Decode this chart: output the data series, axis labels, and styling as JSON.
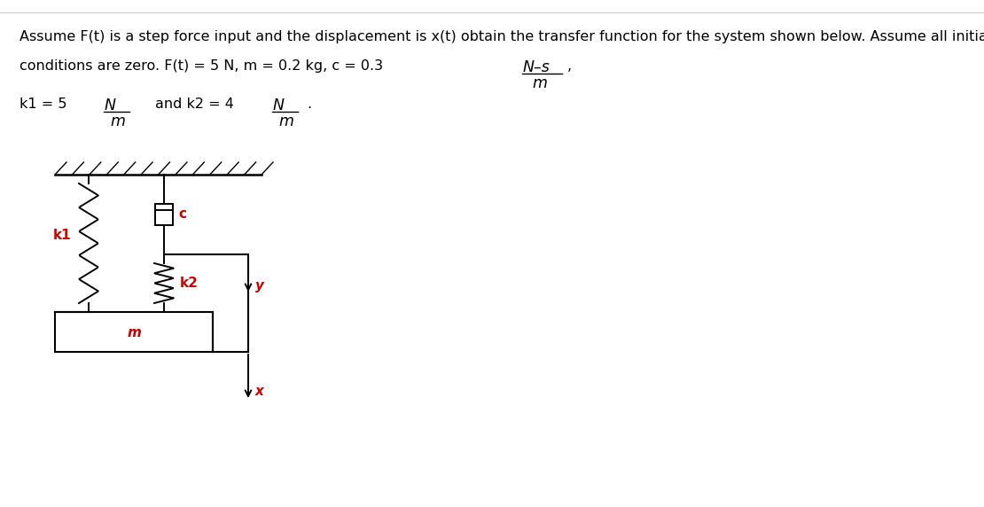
{
  "bg_color": "#ffffff",
  "text_color": "#000000",
  "red_color": "#cc0000",
  "line1": "Assume F(t) is a step force input and the displacement is x(t) obtain the transfer function for the system shown below. Assume all initial",
  "line2_left": "conditions are zero. F(t) = 5 N, m = 0.2 kg, c = 0.3",
  "line2_frac_num": "N–s",
  "line2_frac_den": "m",
  "line2_comma": ",",
  "line3_left": "k1 = 5",
  "line3_frac1_num": "N",
  "line3_frac1_den": "m",
  "line3_mid": "and k2 = 4",
  "line3_frac2_num": "N",
  "line3_frac2_den": "m",
  "line3_period": ".",
  "label_k1": "k1",
  "label_k2": "k2",
  "label_c": "c",
  "label_m": "m",
  "label_x": "x",
  "label_y": "y",
  "figsize": [
    11.1,
    5.72
  ],
  "dpi": 100
}
